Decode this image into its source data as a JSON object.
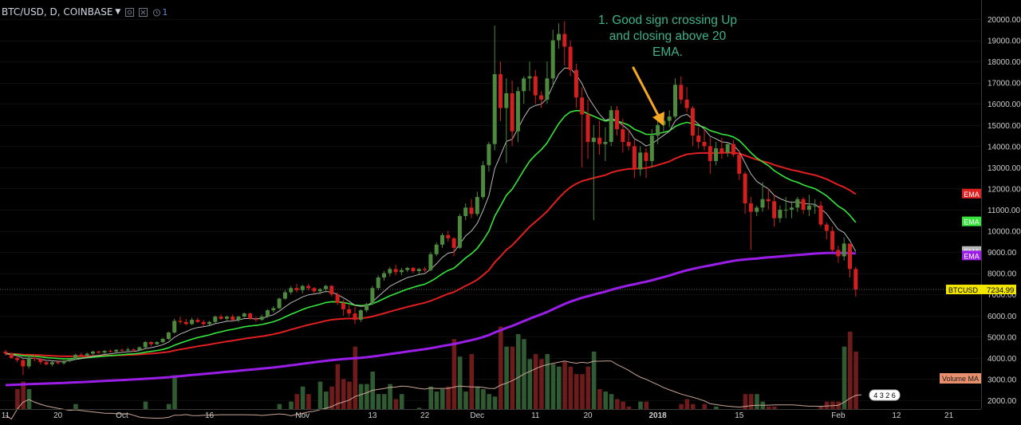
{
  "header": {
    "title": "BTC/USD, D, COINBASE",
    "indicator_count": "1",
    "icons": [
      "chevron-down-icon",
      "settings-icon",
      "close-icon",
      "alarm-clock-icon"
    ]
  },
  "annotation": {
    "lines": [
      "1. Good sign crossing Up",
      "and closing above 20",
      "EMA."
    ],
    "color": "#3fb18b"
  },
  "colors": {
    "background": "#000000",
    "up": "#4e8a3e",
    "down": "#d41f1f",
    "vol_up": "#2f5a32",
    "vol_down": "#6e1b1b",
    "ema_short": "#b8b8b8",
    "ema20": "#36e53a",
    "ema50": "#e02020",
    "ema200": "#9b1ee8",
    "vol_ma": "#c9a595",
    "axis_text": "#cfcfcf",
    "arrow": "#f5a623"
  },
  "chart_data": {
    "type": "candlestick",
    "symbol": "BTC/USD",
    "interval": "D",
    "exchange": "COINBASE",
    "y_axis": {
      "range": [
        1500,
        20500
      ],
      "ticks": [
        "2000.00",
        "3000.00",
        "4000.00",
        "5000.00",
        "6000.00",
        "7000.00",
        "8000.00",
        "9000.00",
        "10000.00",
        "11000.00",
        "12000.00",
        "13000.00",
        "14000.00",
        "15000.00",
        "16000.00",
        "17000.00",
        "18000.00",
        "19000.00",
        "20000.00"
      ]
    },
    "x_axis": {
      "ticks": [
        {
          "label": "11",
          "index": 0
        },
        {
          "label": "20",
          "index": 9
        },
        {
          "label": "Oct",
          "index": 20
        },
        {
          "label": "16",
          "index": 35
        },
        {
          "label": "Nov",
          "index": 51
        },
        {
          "label": "13",
          "index": 63
        },
        {
          "label": "22",
          "index": 72
        },
        {
          "label": "Dec",
          "index": 81
        },
        {
          "label": "11",
          "index": 91
        },
        {
          "label": "20",
          "index": 100
        },
        {
          "label": "2018",
          "index": 112
        },
        {
          "label": "15",
          "index": 126
        },
        {
          "label": "Feb",
          "index": 143
        },
        {
          "label": "12",
          "index": 153
        },
        {
          "label": "21",
          "index": 162
        }
      ]
    },
    "candles": [
      [
        4300,
        4380,
        4100,
        4200
      ],
      [
        4200,
        4250,
        3950,
        4000
      ],
      [
        4000,
        4150,
        3800,
        3900
      ],
      [
        3900,
        3950,
        3200,
        3600
      ],
      [
        3600,
        4100,
        3500,
        4000
      ],
      [
        4000,
        4150,
        3850,
        3950
      ],
      [
        3950,
        4000,
        3700,
        3800
      ],
      [
        3800,
        3900,
        3650,
        3700
      ],
      [
        3700,
        3850,
        3600,
        3800
      ],
      [
        3800,
        3900,
        3700,
        3750
      ],
      [
        3750,
        3900,
        3680,
        3850
      ],
      [
        3850,
        4000,
        3800,
        3950
      ],
      [
        3950,
        4200,
        3900,
        4150
      ],
      [
        4150,
        4250,
        4050,
        4100
      ],
      [
        4100,
        4250,
        4050,
        4200
      ],
      [
        4200,
        4350,
        4150,
        4300
      ],
      [
        4300,
        4350,
        4200,
        4250
      ],
      [
        4250,
        4380,
        4200,
        4330
      ],
      [
        4330,
        4400,
        4250,
        4300
      ],
      [
        4300,
        4420,
        4260,
        4380
      ],
      [
        4380,
        4450,
        4300,
        4350
      ],
      [
        4350,
        4500,
        4320,
        4400
      ],
      [
        4400,
        4450,
        4300,
        4350
      ],
      [
        4350,
        4550,
        4330,
        4500
      ],
      [
        4500,
        4800,
        4450,
        4750
      ],
      [
        4750,
        4780,
        4550,
        4650
      ],
      [
        4650,
        4800,
        4600,
        4750
      ],
      [
        4750,
        4950,
        4700,
        4900
      ],
      [
        4900,
        5250,
        4850,
        5200
      ],
      [
        5200,
        5850,
        5150,
        5750
      ],
      [
        5750,
        5950,
        5600,
        5700
      ],
      [
        5700,
        5850,
        5550,
        5600
      ],
      [
        5600,
        5900,
        5550,
        5800
      ],
      [
        5800,
        5900,
        5650,
        5700
      ],
      [
        5700,
        5800,
        5500,
        5600
      ],
      [
        5600,
        5750,
        5500,
        5700
      ],
      [
        5700,
        6000,
        5650,
        5950
      ],
      [
        5950,
        6050,
        5800,
        5850
      ],
      [
        5850,
        6000,
        5750,
        5950
      ],
      [
        5950,
        6050,
        5750,
        5800
      ],
      [
        5800,
        6000,
        5700,
        5950
      ],
      [
        5950,
        6150,
        5900,
        6100
      ],
      [
        6100,
        6150,
        5800,
        5850
      ],
      [
        5850,
        5950,
        5700,
        5800
      ],
      [
        5800,
        6050,
        5750,
        5950
      ],
      [
        5950,
        6300,
        5900,
        6250
      ],
      [
        6250,
        6450,
        6150,
        6350
      ],
      [
        6350,
        6850,
        6300,
        6800
      ],
      [
        6800,
        7200,
        6750,
        7100
      ],
      [
        7100,
        7400,
        7000,
        7300
      ],
      [
        7300,
        7500,
        7100,
        7200
      ],
      [
        7200,
        7450,
        7050,
        7400
      ],
      [
        7400,
        7500,
        7200,
        7300
      ],
      [
        7300,
        7350,
        7050,
        7150
      ],
      [
        7150,
        7300,
        7000,
        7250
      ],
      [
        7250,
        7450,
        7100,
        7400
      ],
      [
        7400,
        7450,
        6900,
        7000
      ],
      [
        7000,
        7100,
        6500,
        6600
      ],
      [
        6600,
        6750,
        6000,
        6300
      ],
      [
        6300,
        6500,
        5950,
        6100
      ],
      [
        6100,
        6400,
        5600,
        5800
      ],
      [
        5800,
        6300,
        5700,
        6250
      ],
      [
        6250,
        6600,
        6150,
        6550
      ],
      [
        6550,
        7400,
        6500,
        7300
      ],
      [
        7300,
        7900,
        7200,
        7800
      ],
      [
        7800,
        8100,
        7650,
        8000
      ],
      [
        8000,
        8300,
        7850,
        8200
      ],
      [
        8200,
        8400,
        7900,
        8050
      ],
      [
        8050,
        8250,
        7900,
        8150
      ],
      [
        8150,
        8300,
        8050,
        8250
      ],
      [
        8250,
        8300,
        8000,
        8100
      ],
      [
        8100,
        8250,
        7950,
        8200
      ],
      [
        8200,
        8300,
        8050,
        8150
      ],
      [
        8150,
        9000,
        8100,
        8900
      ],
      [
        8900,
        9450,
        8800,
        9350
      ],
      [
        9350,
        9900,
        9200,
        9800
      ],
      [
        9800,
        10000,
        9500,
        9650
      ],
      [
        9650,
        9700,
        8800,
        9200
      ],
      [
        9200,
        10800,
        9150,
        10700
      ],
      [
        10700,
        11300,
        10500,
        11100
      ],
      [
        11100,
        11500,
        10600,
        10800
      ],
      [
        10800,
        11850,
        10700,
        11600
      ],
      [
        11600,
        13300,
        11500,
        13100
      ],
      [
        13100,
        14200,
        12800,
        14100
      ],
      [
        14100,
        19700,
        13800,
        17400
      ],
      [
        17400,
        18000,
        15200,
        15800
      ],
      [
        15800,
        17200,
        13200,
        16500
      ],
      [
        16500,
        17100,
        14000,
        14700
      ],
      [
        14700,
        16800,
        14200,
        16600
      ],
      [
        16600,
        17300,
        16000,
        17200
      ],
      [
        17200,
        18000,
        16600,
        17300
      ],
      [
        17300,
        17600,
        16000,
        16400
      ],
      [
        16400,
        16600,
        15800,
        16200
      ],
      [
        16200,
        18000,
        16000,
        17200
      ],
      [
        17200,
        19500,
        16800,
        19000
      ],
      [
        19000,
        19800,
        18600,
        19300
      ],
      [
        19300,
        19900,
        17800,
        18700
      ],
      [
        18700,
        19000,
        17300,
        17600
      ],
      [
        17600,
        17900,
        15800,
        16300
      ],
      [
        16300,
        16800,
        13000,
        15500
      ],
      [
        15500,
        16200,
        13400,
        14200
      ],
      [
        14200,
        15000,
        10500,
        14400
      ],
      [
        14400,
        15200,
        13600,
        14100
      ],
      [
        14100,
        14900,
        13300,
        14200
      ],
      [
        14200,
        15900,
        14000,
        15700
      ],
      [
        15700,
        15900,
        14500,
        14800
      ],
      [
        14800,
        15300,
        13700,
        14200
      ],
      [
        14200,
        14800,
        13800,
        14000
      ],
      [
        14000,
        14300,
        12500,
        12900
      ],
      [
        12900,
        14000,
        12600,
        13700
      ],
      [
        13700,
        13900,
        12500,
        13300
      ],
      [
        13300,
        14800,
        13000,
        14500
      ],
      [
        14500,
        15400,
        14100,
        15000
      ],
      [
        15000,
        15500,
        14700,
        15200
      ],
      [
        15200,
        15700,
        14900,
        15400
      ],
      [
        15400,
        17200,
        15300,
        16900
      ],
      [
        16900,
        17300,
        16000,
        16200
      ],
      [
        16200,
        16800,
        15600,
        15800
      ],
      [
        15800,
        15900,
        14000,
        14500
      ],
      [
        14500,
        14900,
        13900,
        14200
      ],
      [
        14200,
        14800,
        13800,
        14000
      ],
      [
        14000,
        14400,
        12700,
        13300
      ],
      [
        13300,
        14200,
        13100,
        13900
      ],
      [
        13900,
        14400,
        13400,
        13700
      ],
      [
        13700,
        14200,
        13500,
        14100
      ],
      [
        14100,
        14300,
        13500,
        13600
      ],
      [
        13600,
        13800,
        12400,
        12700
      ],
      [
        12700,
        12800,
        10800,
        11300
      ],
      [
        11300,
        11600,
        9100,
        10900
      ],
      [
        10900,
        11200,
        10700,
        11100
      ],
      [
        11100,
        12300,
        10900,
        11500
      ],
      [
        11500,
        12000,
        11000,
        11400
      ],
      [
        11400,
        11700,
        10200,
        10600
      ],
      [
        10600,
        11200,
        10400,
        11000
      ],
      [
        11000,
        11600,
        10600,
        11000
      ],
      [
        11000,
        11400,
        10600,
        11100
      ],
      [
        11100,
        11600,
        10900,
        11500
      ],
      [
        11500,
        11600,
        10800,
        11000
      ],
      [
        11000,
        11700,
        10700,
        11200
      ],
      [
        11200,
        11500,
        10800,
        11200
      ],
      [
        11200,
        11400,
        10200,
        10300
      ],
      [
        10300,
        10400,
        9600,
        10000
      ],
      [
        10000,
        10200,
        9000,
        9100
      ],
      [
        9100,
        9300,
        8500,
        8800
      ],
      [
        8800,
        9700,
        8600,
        9400
      ],
      [
        9400,
        9400,
        7800,
        8200
      ],
      [
        8200,
        8300,
        6900,
        7235
      ]
    ],
    "volume": {
      "values": [
        1250,
        950,
        2300,
        2600,
        2300,
        1250,
        1200,
        1150,
        1200,
        1100,
        1050,
        1050,
        1700,
        1050,
        1000,
        1000,
        950,
        900,
        1200,
        1150,
        1100,
        1050,
        1050,
        1100,
        1800,
        1050,
        1000,
        1350,
        1700,
        2850,
        1100,
        1500,
        950,
        900,
        1400,
        1050,
        1100,
        1050,
        1200,
        1150,
        1100,
        1050,
        1000,
        1000,
        1400,
        1400,
        1500,
        1700,
        1300,
        1800,
        2100,
        2400,
        2100,
        1500,
        2600,
        2200,
        2400,
        3300,
        2700,
        2600,
        4000,
        2500,
        2500,
        3000,
        2100,
        2100,
        2500,
        1900,
        2100,
        1500,
        1400,
        1550,
        1500,
        2400,
        2200,
        2300,
        2400,
        4300,
        3600,
        2200,
        3700,
        2400,
        2300,
        2100,
        2000,
        4800,
        4000,
        4000,
        4500,
        4300,
        3500,
        3700,
        3500,
        3700,
        3300,
        3200,
        3400,
        3200,
        2900,
        2900,
        3200,
        3800,
        2300,
        2200,
        2100,
        1900,
        1800,
        1600,
        1500,
        1800,
        1800,
        1500,
        1400,
        1400,
        1500,
        1500,
        1700,
        1900,
        1700,
        1500,
        1700,
        1500,
        1600,
        1500,
        1500,
        1500,
        1500,
        2100,
        2100,
        2100,
        1800,
        1600,
        1600,
        1500,
        1500,
        1500,
        1400,
        1400,
        1400,
        1500,
        1600,
        1800,
        1800,
        1800,
        4000,
        4600,
        3800,
        2600
      ],
      "ma_label": "Volume MA",
      "ma_value": "4326",
      "range": [
        1500,
        20500
      ]
    },
    "ema_labels": [
      {
        "label": "EMA",
        "value": 11760,
        "color": "#e02020",
        "text_color": "#ffffff"
      },
      {
        "label": "EMA",
        "value": 10450,
        "color": "#36e53a",
        "text_color": "#ffffff"
      },
      {
        "label": "EMA",
        "value": 9050,
        "color": "#b8b8b8",
        "text_color": "#ffffff"
      },
      {
        "label": "EMA",
        "value": 8840,
        "color": "#9b1ee8",
        "text_color": "#ffffff"
      }
    ],
    "price_label": {
      "symbol": "BTCUSD",
      "value": "7234.99",
      "numeric": 7234.99
    }
  }
}
